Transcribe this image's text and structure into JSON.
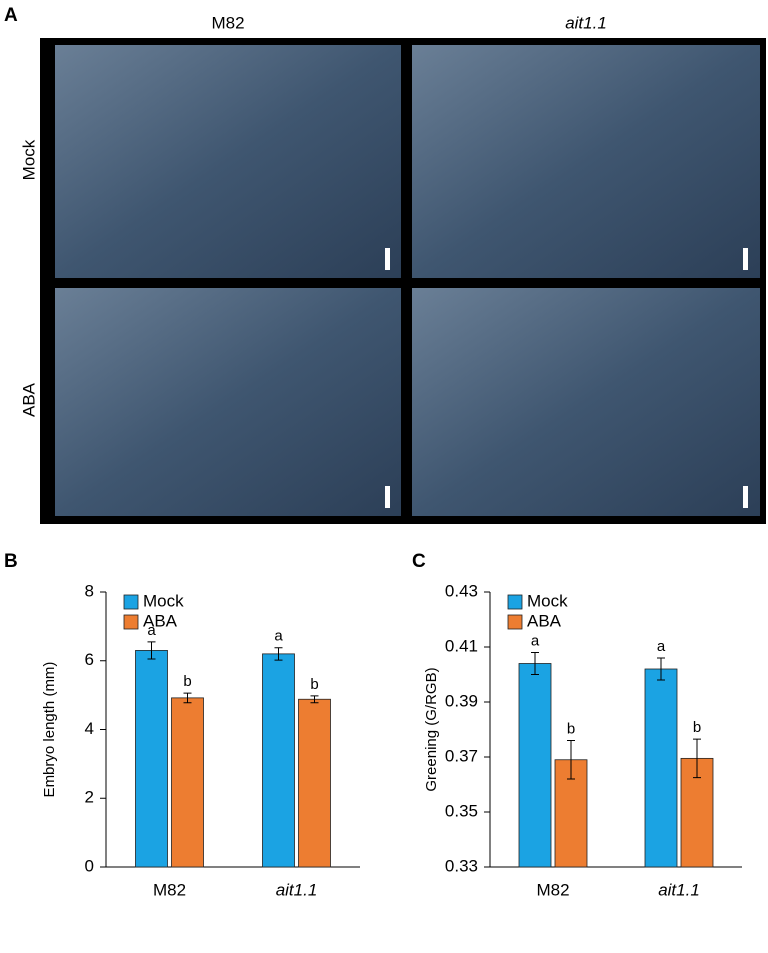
{
  "panels": {
    "a": "A",
    "b": "B",
    "c": "C"
  },
  "photo": {
    "columns": [
      "M82",
      "ait1.1"
    ],
    "rows": [
      "Mock",
      "ABA"
    ]
  },
  "chart_data": [
    {
      "type": "bar",
      "ylabel": "Embryo length (mm)",
      "categories": [
        "M82",
        "ait1.1"
      ],
      "series": [
        {
          "name": "Mock",
          "color": "#1ba3e3",
          "values": [
            6.3,
            6.2
          ],
          "errors": [
            0.25,
            0.18
          ],
          "letters": [
            "a",
            "a"
          ]
        },
        {
          "name": "ABA",
          "color": "#ed7d31",
          "values": [
            4.92,
            4.88
          ],
          "errors": [
            0.14,
            0.1
          ],
          "letters": [
            "b",
            "b"
          ]
        }
      ],
      "ylim": [
        0,
        8
      ],
      "yticks": [
        0,
        2,
        4,
        6,
        8
      ],
      "legend": "top-left"
    },
    {
      "type": "bar",
      "ylabel": "Greening (G/RGB)",
      "categories": [
        "M82",
        "ait1.1"
      ],
      "series": [
        {
          "name": "Mock",
          "color": "#1ba3e3",
          "values": [
            0.404,
            0.402
          ],
          "errors": [
            0.004,
            0.004
          ],
          "letters": [
            "a",
            "a"
          ]
        },
        {
          "name": "ABA",
          "color": "#ed7d31",
          "values": [
            0.369,
            0.3695
          ],
          "errors": [
            0.007,
            0.007
          ],
          "letters": [
            "b",
            "b"
          ]
        }
      ],
      "ylim": [
        0.33,
        0.43
      ],
      "yticks": [
        0.33,
        0.35,
        0.37,
        0.39,
        0.41,
        0.43
      ],
      "legend": "top-left"
    }
  ]
}
